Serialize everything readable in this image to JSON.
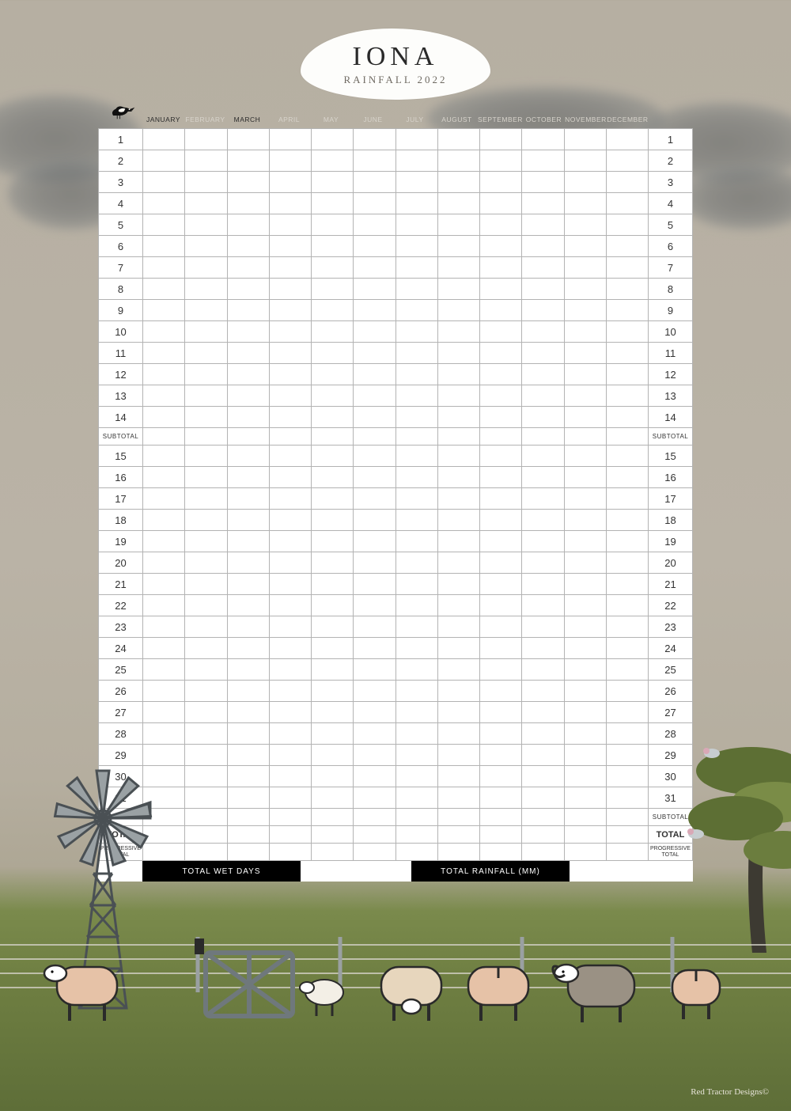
{
  "title": {
    "main": "IONA",
    "sub": "RAINFALL 2022"
  },
  "months": [
    {
      "label": "JANUARY",
      "tone": "dark"
    },
    {
      "label": "FEBRUARY",
      "tone": "light"
    },
    {
      "label": "MARCH",
      "tone": "dark"
    },
    {
      "label": "APRIL",
      "tone": "light"
    },
    {
      "label": "MAY",
      "tone": "light"
    },
    {
      "label": "JUNE",
      "tone": "light"
    },
    {
      "label": "JULY",
      "tone": "light"
    },
    {
      "label": "AUGUST",
      "tone": "light"
    },
    {
      "label": "SEPTEMBER",
      "tone": "light"
    },
    {
      "label": "OCTOBER",
      "tone": "light"
    },
    {
      "label": "NOVEMBER",
      "tone": "light"
    },
    {
      "label": "DECEMBER",
      "tone": "light"
    }
  ],
  "rows_block1": [
    "1",
    "2",
    "3",
    "4",
    "5",
    "6",
    "7",
    "8",
    "9",
    "10",
    "11",
    "12",
    "13",
    "14"
  ],
  "rows_block2": [
    "15",
    "16",
    "17",
    "18",
    "19",
    "20",
    "21",
    "22",
    "23",
    "24",
    "25",
    "26",
    "27",
    "28",
    "29",
    "30",
    "31"
  ],
  "labels": {
    "subtotal": "SUBTOTAL",
    "total": "TOTAL",
    "progressive": "PROGRESSIVE\nTOTAL",
    "wet_days": "TOTAL WET DAYS",
    "total_rain": "TOTAL RAINFALL  (MM)"
  },
  "credit": "Red Tractor Designs©",
  "palette": {
    "sky_top": "#b6afa2",
    "grass": "#6f7f42",
    "cloud": "#5a5e61",
    "grid_border": "#b3b3b3",
    "table_bg": "#ffffff",
    "windmill": "#7c8488",
    "tree_canopy": "#5d6f34",
    "tree_canopy_light": "#7a8c47",
    "sheep_body_cream": "#e7d6bd",
    "sheep_body_pink": "#e6c2a7",
    "sheep_body_grey": "#9a9184"
  }
}
